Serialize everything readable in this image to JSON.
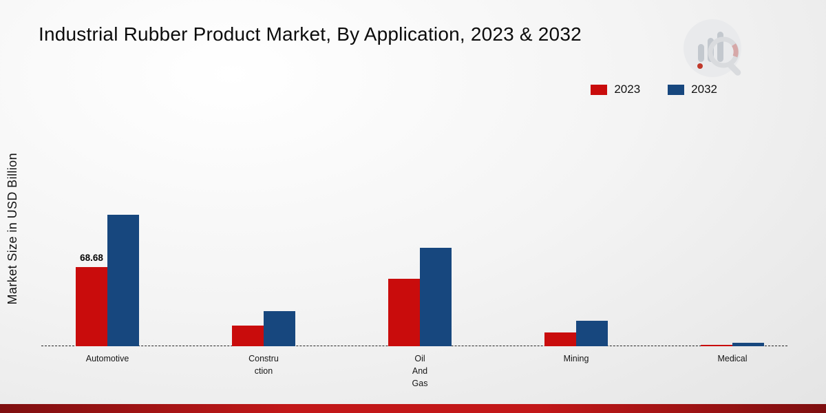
{
  "chart_data": {
    "type": "bar",
    "title": "Industrial Rubber Product Market, By Application, 2023 & 2032",
    "ylabel": "Market Size in USD Billion",
    "xlabel": "",
    "categories": [
      "Automotive",
      "Construction",
      "Oil And Gas",
      "Mining",
      "Medical"
    ],
    "category_label_lines": [
      [
        "Automotive"
      ],
      [
        "Constru",
        "ction"
      ],
      [
        "Oil",
        "And",
        "Gas"
      ],
      [
        "Mining"
      ],
      [
        "Medical"
      ]
    ],
    "series": [
      {
        "name": "2023",
        "color": "#c90c0c",
        "values": [
          68.68,
          18,
          58.5,
          12,
          1.2
        ]
      },
      {
        "name": "2032",
        "color": "#17477e",
        "values": [
          114,
          30.5,
          85.5,
          22,
          3.2
        ]
      }
    ],
    "data_labels": [
      [
        "68.68",
        "",
        "",
        "",
        ""
      ],
      [
        "",
        "",
        "",
        "",
        ""
      ]
    ],
    "ylim": [
      0,
      120
    ],
    "grid": false,
    "legend_position": "top-right",
    "baseline_style": "dashed"
  },
  "colors": {
    "accent_red": "#c90c0c",
    "accent_blue": "#17477e",
    "ribbon_red": "#a01212"
  },
  "icons": {
    "brand_logo": "bar-chart-magnifier-logo"
  }
}
